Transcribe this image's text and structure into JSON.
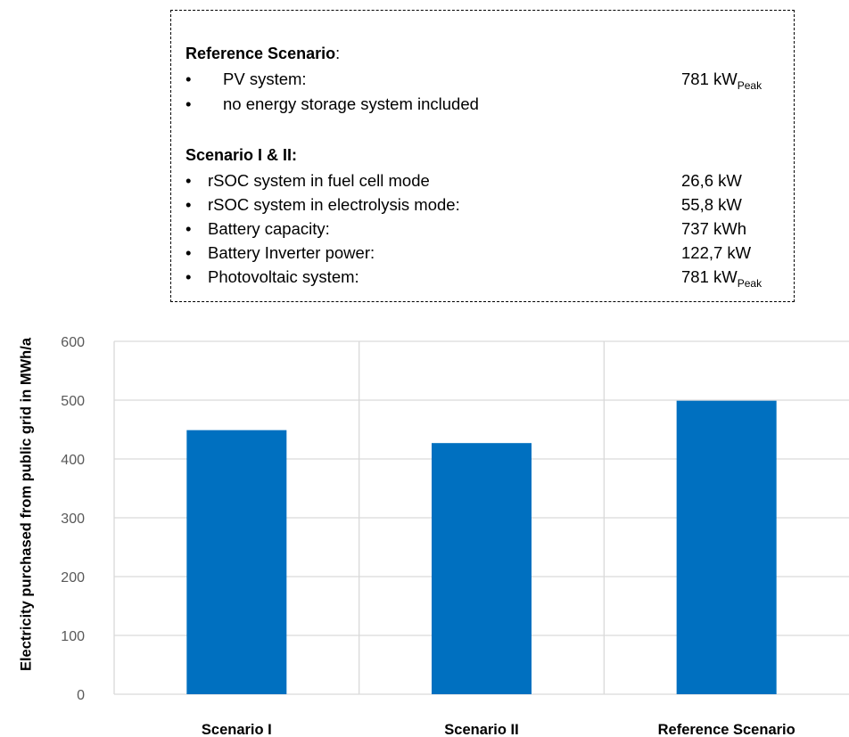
{
  "legend": {
    "reference_title": "Reference Scenario",
    "reference_colon": ":",
    "reference_items": [
      {
        "bullet": "•",
        "label": "PV system:",
        "value": "781 kW",
        "sub": "Peak"
      },
      {
        "bullet": "•",
        "label": "no energy storage system included",
        "value": "",
        "sub": ""
      }
    ],
    "scenario_title": "Scenario I & II:",
    "scenario_items": [
      {
        "bullet": "•",
        "label": "rSOC system in fuel cell mode",
        "value": "26,6 kW",
        "sub": ""
      },
      {
        "bullet": "•",
        "label": "rSOC system in electrolysis mode:",
        "value": "55,8 kW",
        "sub": ""
      },
      {
        "bullet": "•",
        "label": "Battery capacity:",
        "value": "737 kWh",
        "sub": ""
      },
      {
        "bullet": "•",
        "label": "Battery Inverter power:",
        "value": "122,7 kW",
        "sub": ""
      },
      {
        "bullet": "•",
        "label": "Photovoltaic system:",
        "value": "781 kW",
        "sub": "Peak"
      }
    ]
  },
  "chart_data": {
    "type": "bar",
    "categories": [
      "Scenario I",
      "Scenario II",
      "Reference Scenario"
    ],
    "values": [
      449,
      427,
      499
    ],
    "ylabel": "Electricity purchased from public grid in MWh/a",
    "xlabel": "",
    "ylim": [
      0,
      600
    ],
    "yticks": [
      "0",
      "100",
      "200",
      "300",
      "400",
      "500",
      "600"
    ],
    "grid": true,
    "bar_color": "#0070C0",
    "grid_color": "#D9D9D9"
  }
}
